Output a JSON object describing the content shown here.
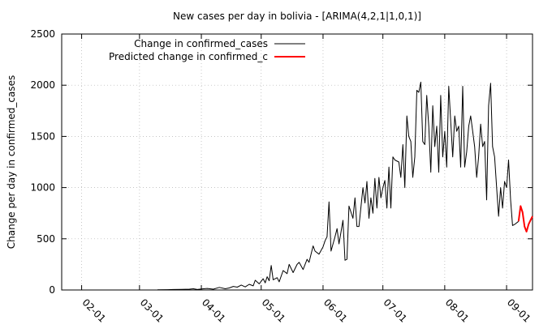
{
  "chart_data": {
    "type": "line",
    "title": "New cases per day in bolivia -  [ARIMA(4,2,1|1,0,1)]",
    "xlabel": "",
    "ylabel": "Change per day in confirmed_cases",
    "xlim": [
      "2020-01-22",
      "2020-09-14"
    ],
    "ylim": [
      0,
      2500
    ],
    "y_ticks": [
      0,
      500,
      1000,
      1500,
      2000,
      2500
    ],
    "x_ticks": [
      {
        "date": "2020-02-01",
        "label": "02-01"
      },
      {
        "date": "2020-03-01",
        "label": "03-01"
      },
      {
        "date": "2020-04-01",
        "label": "04-01"
      },
      {
        "date": "2020-05-01",
        "label": "05-01"
      },
      {
        "date": "2020-06-01",
        "label": "06-01"
      },
      {
        "date": "2020-07-01",
        "label": "07-01"
      },
      {
        "date": "2020-08-01",
        "label": "08-01"
      },
      {
        "date": "2020-09-01",
        "label": "09-01"
      }
    ],
    "grid": true,
    "legend_position": "top-left",
    "series": [
      {
        "name": "Change in confirmed_cases",
        "color": "#000000",
        "points": [
          [
            "2020-03-10",
            2
          ],
          [
            "2020-03-15",
            3
          ],
          [
            "2020-03-18",
            5
          ],
          [
            "2020-03-22",
            6
          ],
          [
            "2020-03-26",
            8
          ],
          [
            "2020-03-28",
            12
          ],
          [
            "2020-03-30",
            5
          ],
          [
            "2020-04-01",
            10
          ],
          [
            "2020-04-04",
            15
          ],
          [
            "2020-04-07",
            8
          ],
          [
            "2020-04-10",
            25
          ],
          [
            "2020-04-13",
            12
          ],
          [
            "2020-04-15",
            20
          ],
          [
            "2020-04-17",
            35
          ],
          [
            "2020-04-19",
            28
          ],
          [
            "2020-04-21",
            48
          ],
          [
            "2020-04-23",
            30
          ],
          [
            "2020-04-25",
            55
          ],
          [
            "2020-04-27",
            40
          ],
          [
            "2020-04-28",
            95
          ],
          [
            "2020-04-30",
            60
          ],
          [
            "2020-05-02",
            110
          ],
          [
            "2020-05-03",
            70
          ],
          [
            "2020-05-04",
            130
          ],
          [
            "2020-05-05",
            90
          ],
          [
            "2020-05-06",
            240
          ],
          [
            "2020-05-07",
            100
          ],
          [
            "2020-05-09",
            120
          ],
          [
            "2020-05-10",
            80
          ],
          [
            "2020-05-12",
            190
          ],
          [
            "2020-05-14",
            160
          ],
          [
            "2020-05-15",
            250
          ],
          [
            "2020-05-17",
            170
          ],
          [
            "2020-05-19",
            250
          ],
          [
            "2020-05-20",
            270
          ],
          [
            "2020-05-22",
            200
          ],
          [
            "2020-05-24",
            300
          ],
          [
            "2020-05-25",
            270
          ],
          [
            "2020-05-27",
            430
          ],
          [
            "2020-05-28",
            380
          ],
          [
            "2020-05-30",
            350
          ],
          [
            "2020-06-01",
            420
          ],
          [
            "2020-06-02",
            480
          ],
          [
            "2020-06-03",
            520
          ],
          [
            "2020-06-04",
            860
          ],
          [
            "2020-06-05",
            380
          ],
          [
            "2020-06-07",
            520
          ],
          [
            "2020-06-08",
            600
          ],
          [
            "2020-06-09",
            450
          ],
          [
            "2020-06-11",
            680
          ],
          [
            "2020-06-12",
            290
          ],
          [
            "2020-06-13",
            300
          ],
          [
            "2020-06-14",
            820
          ],
          [
            "2020-06-16",
            700
          ],
          [
            "2020-06-17",
            900
          ],
          [
            "2020-06-18",
            620
          ],
          [
            "2020-06-19",
            620
          ],
          [
            "2020-06-21",
            1000
          ],
          [
            "2020-06-22",
            850
          ],
          [
            "2020-06-23",
            1060
          ],
          [
            "2020-06-24",
            700
          ],
          [
            "2020-06-25",
            900
          ],
          [
            "2020-06-26",
            750
          ],
          [
            "2020-06-27",
            1090
          ],
          [
            "2020-06-28",
            800
          ],
          [
            "2020-06-29",
            1100
          ],
          [
            "2020-06-30",
            900
          ],
          [
            "2020-07-01",
            1000
          ],
          [
            "2020-07-02",
            1070
          ],
          [
            "2020-07-03",
            800
          ],
          [
            "2020-07-04",
            1200
          ],
          [
            "2020-07-05",
            800
          ],
          [
            "2020-07-06",
            1300
          ],
          [
            "2020-07-07",
            1270
          ],
          [
            "2020-07-09",
            1250
          ],
          [
            "2020-07-10",
            1100
          ],
          [
            "2020-07-11",
            1420
          ],
          [
            "2020-07-12",
            1000
          ],
          [
            "2020-07-13",
            1700
          ],
          [
            "2020-07-14",
            1500
          ],
          [
            "2020-07-15",
            1450
          ],
          [
            "2020-07-16",
            1100
          ],
          [
            "2020-07-17",
            1300
          ],
          [
            "2020-07-18",
            1950
          ],
          [
            "2020-07-19",
            1930
          ],
          [
            "2020-07-20",
            2030
          ],
          [
            "2020-07-21",
            1450
          ],
          [
            "2020-07-22",
            1420
          ],
          [
            "2020-07-23",
            1900
          ],
          [
            "2020-07-24",
            1600
          ],
          [
            "2020-07-25",
            1150
          ],
          [
            "2020-07-26",
            1800
          ],
          [
            "2020-07-27",
            1400
          ],
          [
            "2020-07-28",
            1600
          ],
          [
            "2020-07-29",
            1150
          ],
          [
            "2020-07-30",
            1900
          ],
          [
            "2020-07-31",
            1300
          ],
          [
            "2020-08-01",
            1550
          ],
          [
            "2020-08-02",
            1200
          ],
          [
            "2020-08-03",
            1990
          ],
          [
            "2020-08-04",
            1650
          ],
          [
            "2020-08-05",
            1300
          ],
          [
            "2020-08-06",
            1700
          ],
          [
            "2020-08-07",
            1550
          ],
          [
            "2020-08-08",
            1600
          ],
          [
            "2020-08-09",
            1200
          ],
          [
            "2020-08-10",
            1990
          ],
          [
            "2020-08-11",
            1200
          ],
          [
            "2020-08-12",
            1350
          ],
          [
            "2020-08-13",
            1600
          ],
          [
            "2020-08-14",
            1700
          ],
          [
            "2020-08-15",
            1550
          ],
          [
            "2020-08-16",
            1400
          ],
          [
            "2020-08-17",
            1100
          ],
          [
            "2020-08-18",
            1300
          ],
          [
            "2020-08-19",
            1620
          ],
          [
            "2020-08-20",
            1400
          ],
          [
            "2020-08-21",
            1450
          ],
          [
            "2020-08-22",
            880
          ],
          [
            "2020-08-23",
            1800
          ],
          [
            "2020-08-24",
            2020
          ],
          [
            "2020-08-25",
            1400
          ],
          [
            "2020-08-26",
            1300
          ],
          [
            "2020-08-27",
            1000
          ],
          [
            "2020-08-28",
            720
          ],
          [
            "2020-08-29",
            1000
          ],
          [
            "2020-08-30",
            800
          ],
          [
            "2020-08-31",
            1060
          ],
          [
            "2020-09-01",
            1000
          ],
          [
            "2020-09-02",
            1270
          ],
          [
            "2020-09-03",
            880
          ],
          [
            "2020-09-04",
            630
          ],
          [
            "2020-09-05",
            640
          ],
          [
            "2020-09-07",
            670
          ]
        ]
      },
      {
        "name": "Predicted change in confirmed_c",
        "color": "#ff0000",
        "points": [
          [
            "2020-09-07",
            670
          ],
          [
            "2020-09-08",
            820
          ],
          [
            "2020-09-09",
            760
          ],
          [
            "2020-09-10",
            620
          ],
          [
            "2020-09-11",
            570
          ],
          [
            "2020-09-12",
            640
          ],
          [
            "2020-09-13",
            680
          ],
          [
            "2020-09-14",
            720
          ]
        ]
      }
    ]
  }
}
